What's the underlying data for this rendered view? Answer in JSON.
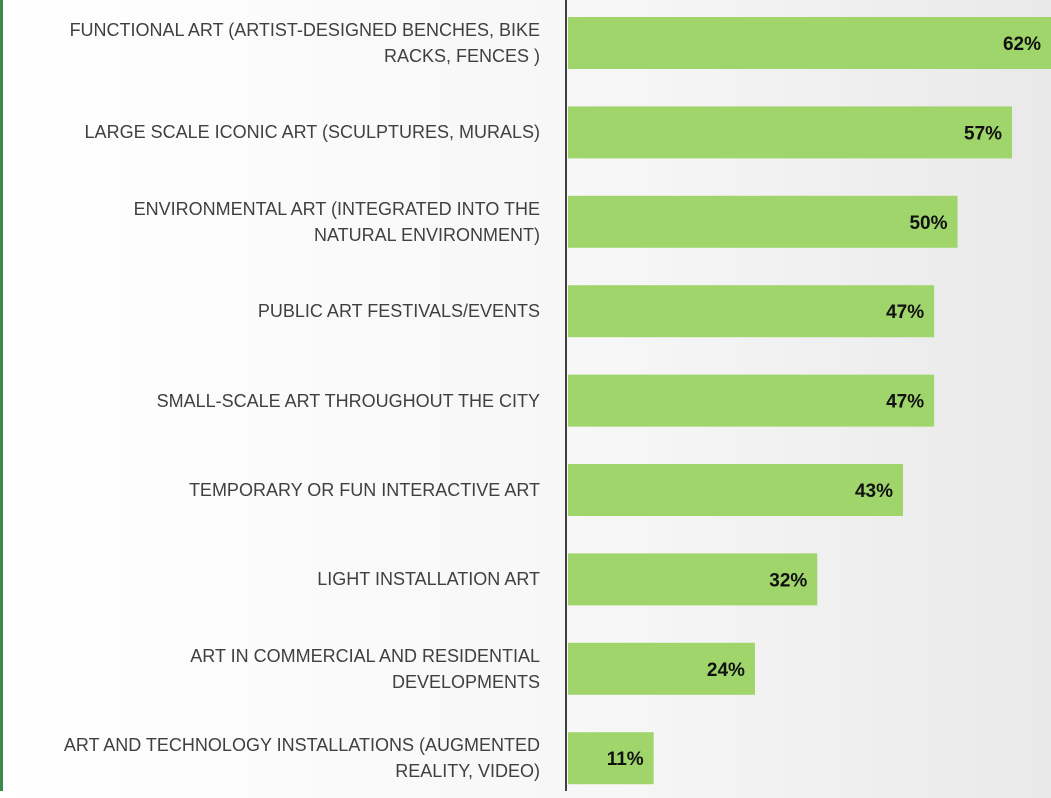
{
  "chart_data": {
    "type": "bar",
    "orientation": "horizontal",
    "categories": [
      "FUNCTIONAL ART (ARTIST-DESIGNED BENCHES, BIKE RACKS, FENCES )",
      "LARGE SCALE ICONIC ART (SCULPTURES, MURALS)",
      "ENVIRONMENTAL ART (INTEGRATED INTO THE NATURAL ENVIRONMENT)",
      "PUBLIC ART FESTIVALS/EVENTS",
      "SMALL-SCALE ART THROUGHOUT THE CITY",
      "TEMPORARY OR FUN INTERACTIVE ART",
      "LIGHT INSTALLATION ART",
      "ART IN COMMERCIAL AND RESIDENTIAL DEVELOPMENTS",
      "ART AND TECHNOLOGY INSTALLATIONS (AUGMENTED REALITY, VIDEO)"
    ],
    "values": [
      62,
      57,
      50,
      47,
      47,
      43,
      32,
      24,
      11
    ],
    "value_labels": [
      "62%",
      "57%",
      "50%",
      "47%",
      "47%",
      "43%",
      "32%",
      "24%",
      "11%"
    ],
    "color": "#a0d56c"
  }
}
